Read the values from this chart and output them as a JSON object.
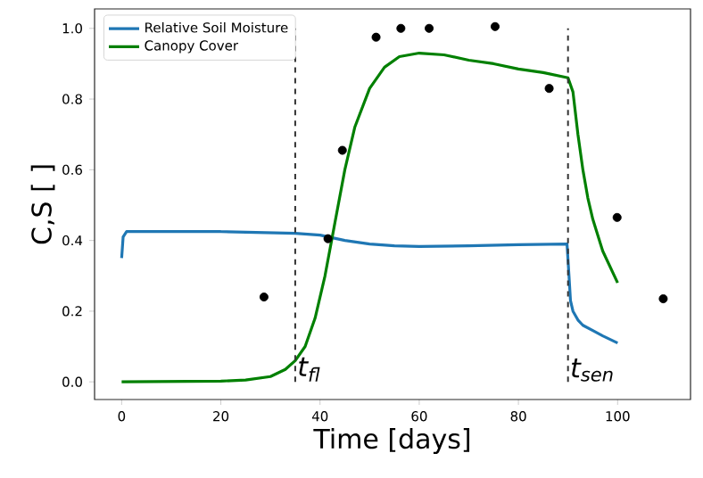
{
  "chart_data": {
    "type": "line",
    "xlabel": "Time [days]",
    "ylabel": "C,S [ ]",
    "xlim": [
      -5.46,
      114.7
    ],
    "ylim": [
      -0.05,
      1.055
    ],
    "xticks": [
      0,
      20,
      40,
      60,
      80,
      100
    ],
    "yticks": [
      {
        "value": 0,
        "label": "0.0"
      },
      0.2,
      0.4,
      0.6,
      0.8,
      {
        "value": 1,
        "label": "1.0"
      }
    ],
    "legend": "top left",
    "grid": false,
    "series": [
      {
        "name": "Relative Soil Moisture",
        "color": "#1f77b4",
        "marker": "none",
        "x": [
          0,
          0.3,
          1,
          5,
          20,
          35,
          40,
          45,
          50,
          55,
          60,
          70,
          80,
          89.8,
          90.2,
          90.5,
          91,
          92,
          93,
          95,
          97,
          100
        ],
        "values": [
          0.35,
          0.41,
          0.425,
          0.425,
          0.425,
          0.42,
          0.415,
          0.4,
          0.39,
          0.385,
          0.383,
          0.385,
          0.388,
          0.39,
          0.3,
          0.23,
          0.2,
          0.175,
          0.16,
          0.145,
          0.13,
          0.11
        ]
      },
      {
        "name": "Canopy Cover",
        "color": "#008000",
        "marker": "none",
        "x": [
          0,
          20,
          25,
          30,
          33,
          35,
          37,
          39,
          41,
          43,
          45,
          47,
          50,
          53,
          56,
          60,
          65,
          70,
          75,
          80,
          85,
          90,
          91,
          92,
          93,
          94,
          95,
          97,
          100
        ],
        "values": [
          0,
          0.002,
          0.005,
          0.015,
          0.035,
          0.06,
          0.1,
          0.18,
          0.3,
          0.45,
          0.6,
          0.72,
          0.83,
          0.89,
          0.92,
          0.93,
          0.925,
          0.91,
          0.9,
          0.885,
          0.875,
          0.86,
          0.82,
          0.7,
          0.6,
          0.52,
          0.46,
          0.37,
          0.28
        ]
      },
      {
        "color": "#000000",
        "type": "scatter",
        "marker": "circle",
        "x": [
          28.7,
          41.6,
          44.5,
          51.3,
          56.3,
          62.0,
          75.3,
          86.2,
          99.9,
          109.2
        ],
        "values": [
          0.24,
          0.405,
          0.655,
          0.975,
          1.0,
          1.0,
          1.005,
          0.83,
          0.465,
          0.235
        ]
      }
    ],
    "ref_lines": [
      {
        "axis": "x",
        "value": 35,
        "label": "t$_{fl}$",
        "color": "#333333",
        "line_style": "dashed"
      },
      {
        "axis": "x",
        "value": 90,
        "label": "t$_{sen}$",
        "color": "#333333",
        "line_style": "dashed"
      }
    ]
  }
}
